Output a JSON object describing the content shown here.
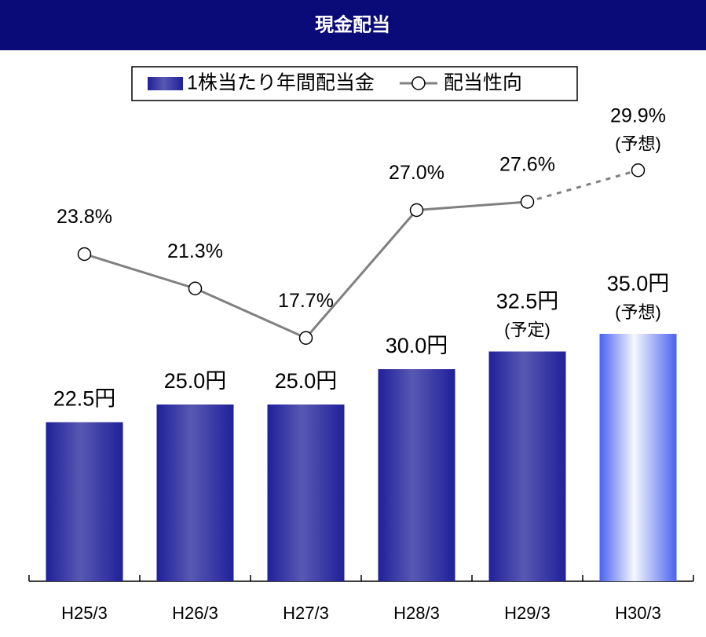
{
  "chart_data": {
    "type": "combo",
    "title": "現金配当",
    "categories": [
      "H25/3",
      "H26/3",
      "H27/3",
      "H28/3",
      "H29/3",
      "H30/3"
    ],
    "series": [
      {
        "name": "1株当たり年間配当金",
        "type": "bar",
        "color": "#20209a",
        "colors": [
          "#20209a",
          "#20209a",
          "#20209a",
          "#20209a",
          "#20209a",
          "#4a62f0"
        ],
        "values": [
          22.5,
          25.0,
          25.0,
          30.0,
          32.5,
          35.0
        ],
        "value_labels": [
          "22.5円",
          "25.0円",
          "25.0円",
          "30.0円",
          "32.5円",
          "35.0円"
        ],
        "notes": [
          null,
          null,
          null,
          null,
          "(予定)",
          "(予想)"
        ]
      },
      {
        "name": "配当性向",
        "type": "line",
        "axis": "y2",
        "color": "#808080",
        "values": [
          23.8,
          21.3,
          17.7,
          27.0,
          27.6,
          29.9
        ],
        "value_labels": [
          "23.8%",
          "21.3%",
          "17.7%",
          "27.0%",
          "27.6%",
          "29.9%"
        ],
        "notes": [
          null,
          null,
          null,
          null,
          null,
          "(予想)"
        ],
        "dashed_segments": [
          4
        ]
      }
    ],
    "ylim": [
      0,
      70
    ],
    "y2lim": [
      0,
      36
    ],
    "legend": "top"
  }
}
